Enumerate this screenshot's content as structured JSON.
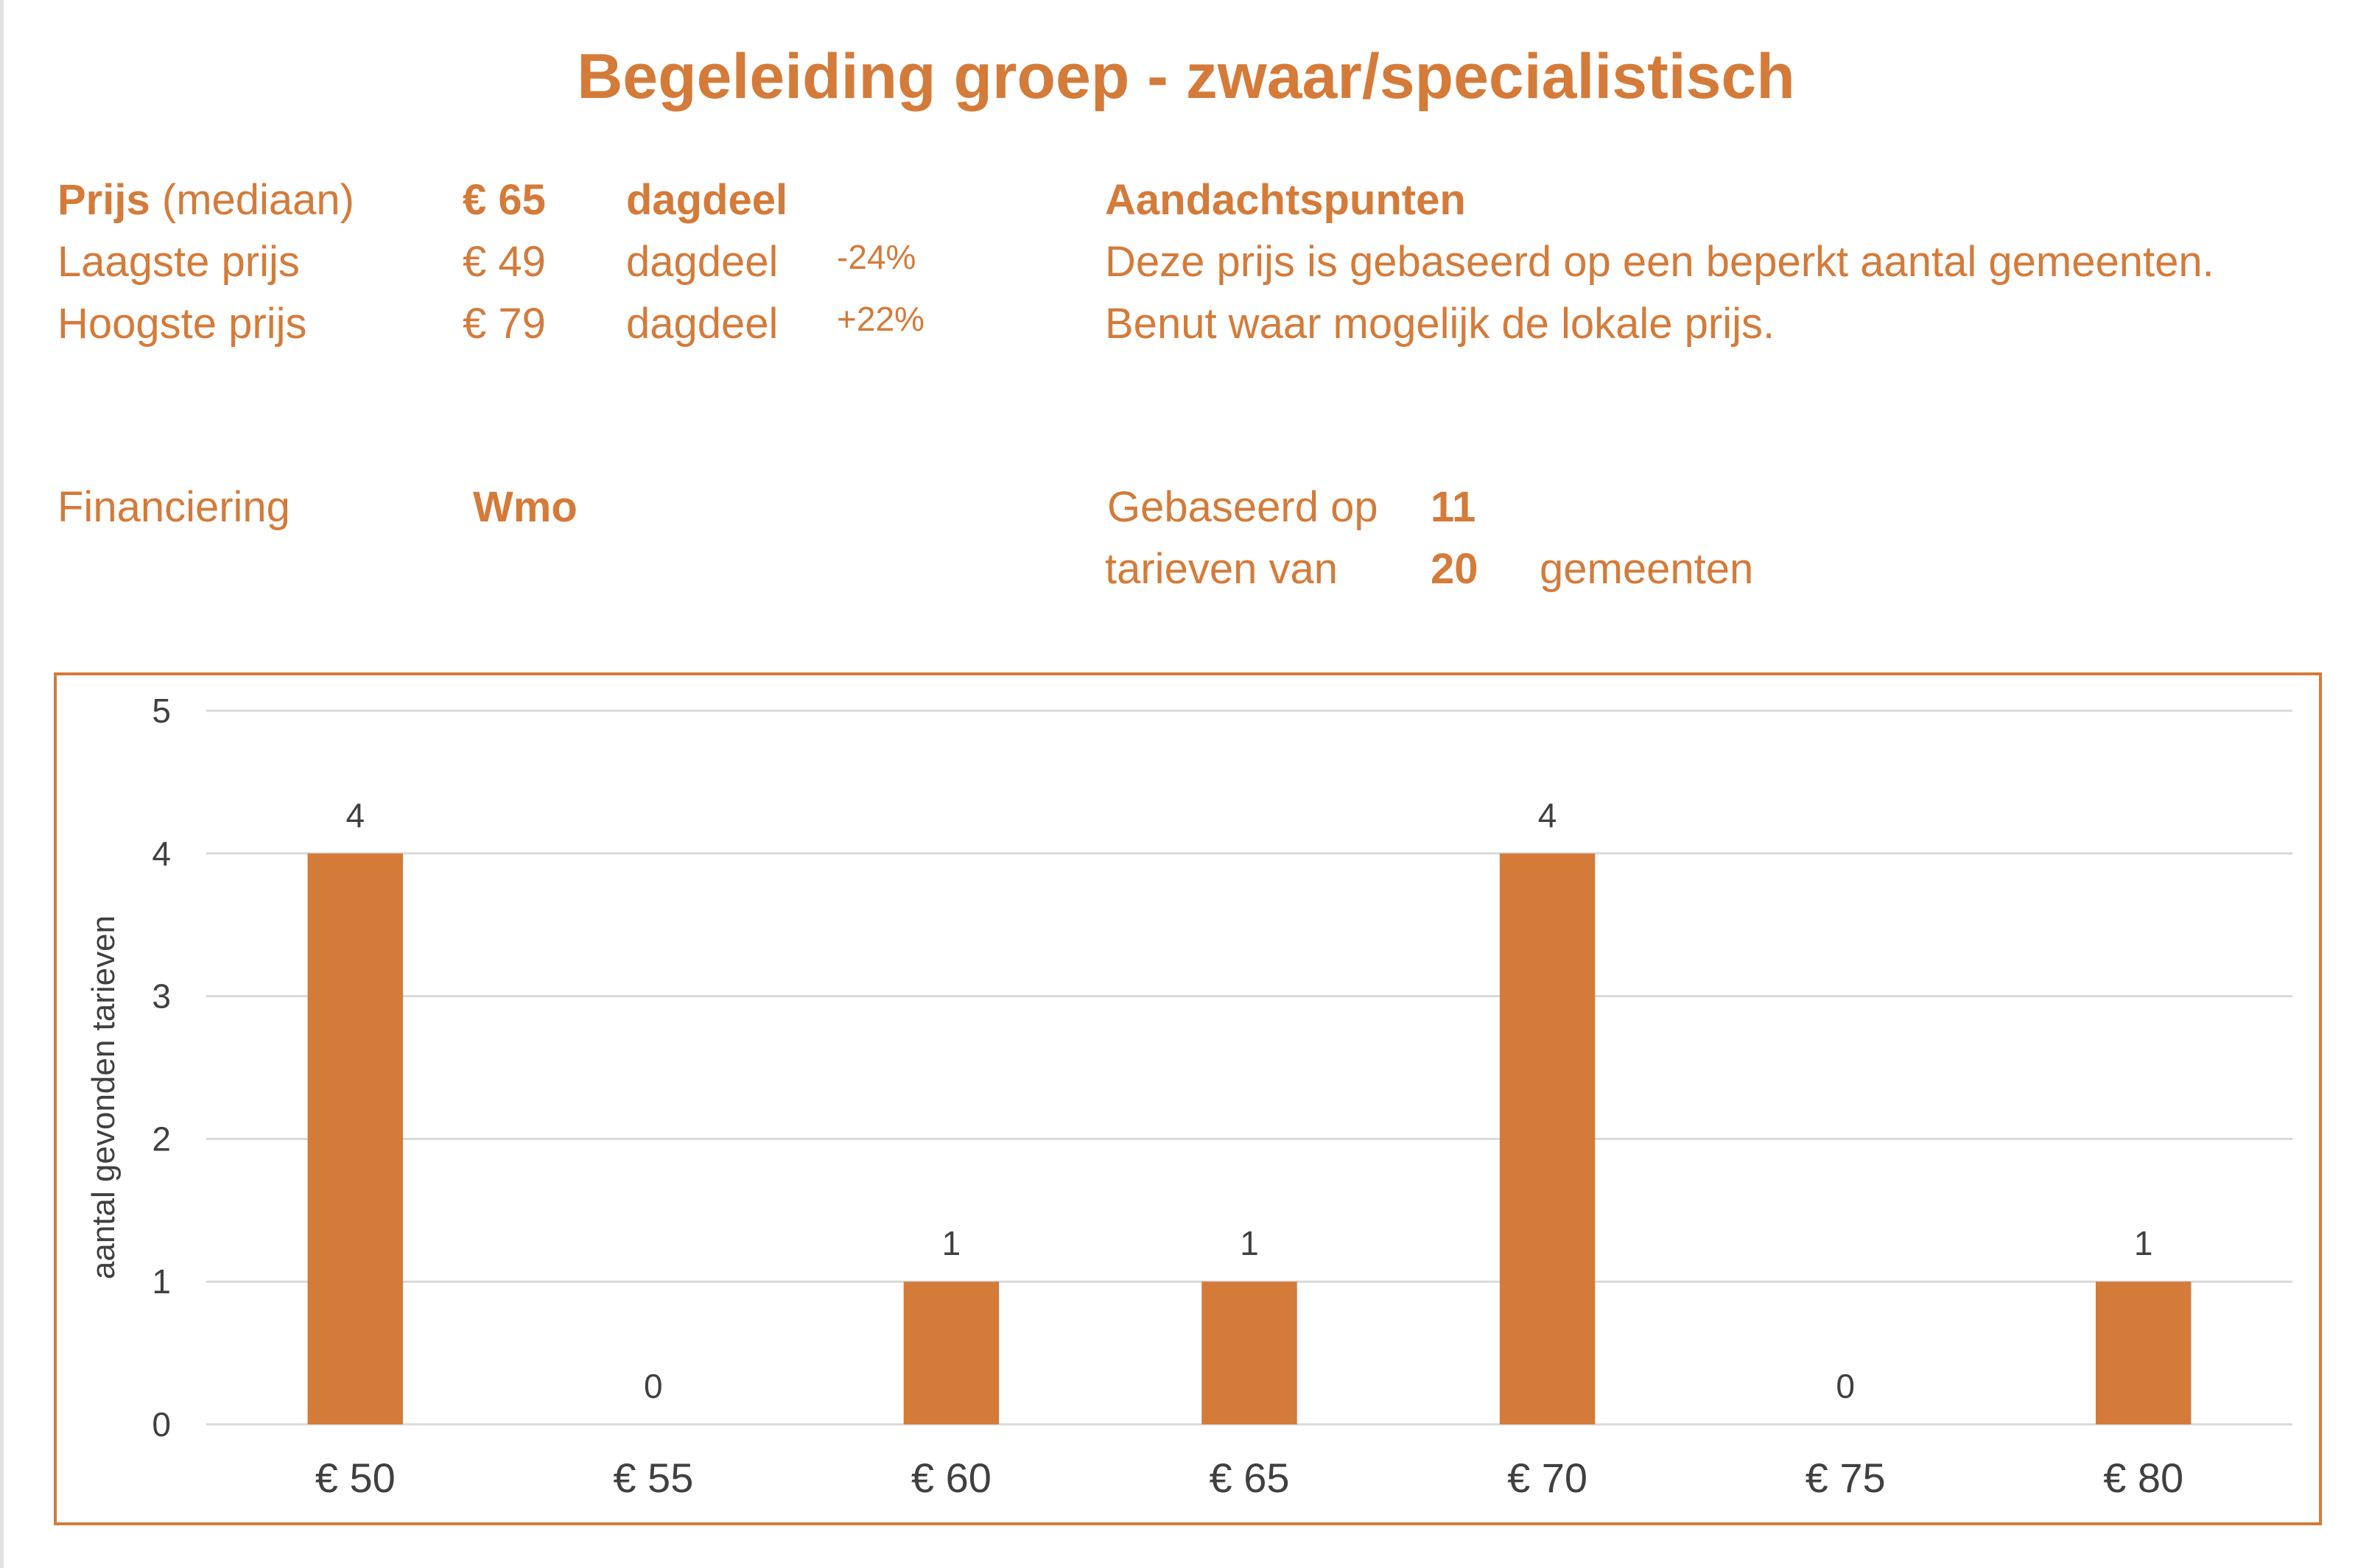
{
  "title": "Begeleiding groep - zwaar/specialistisch",
  "price": {
    "median_label": "Prijs",
    "median_suffix": "(mediaan)",
    "median_value": "€ 65",
    "median_unit": "dagdeel",
    "low_label": "Laagste prijs",
    "low_value": "€ 49",
    "low_unit": "dagdeel",
    "low_pct": "-24%",
    "high_label": "Hoogste prijs",
    "high_value": "€ 79",
    "high_unit": "dagdeel",
    "high_pct": "+22%"
  },
  "notes": {
    "heading": "Aandachtspunten",
    "line1": "Deze prijs is gebaseerd op een beperkt aantal gemeenten.",
    "line2": "Benut waar mogelijk de lokale prijs."
  },
  "financing": {
    "label": "Financiering",
    "value": "Wmo"
  },
  "basis": {
    "line1_label": "Gebaseerd op",
    "rates_count": "11",
    "line2_label": "tarieven van",
    "municipalities_count": "20",
    "municipalities_label": "gemeenten"
  },
  "colors": {
    "accent": "#d47b3a",
    "bar": "#d47b3a",
    "grid": "#d9d9d9",
    "text": "#404040"
  },
  "chart_data": {
    "type": "bar",
    "categories": [
      "€ 50",
      "€ 55",
      "€ 60",
      "€ 65",
      "€ 70",
      "€ 75",
      "€ 80"
    ],
    "values": [
      4,
      0,
      1,
      1,
      4,
      0,
      1
    ],
    "ylabel": "aantal gevonden tarieven",
    "ylim": [
      0,
      5
    ],
    "yticks": [
      0,
      1,
      2,
      3,
      4,
      5
    ],
    "data_labels": true,
    "grid": true,
    "legend": "none"
  }
}
